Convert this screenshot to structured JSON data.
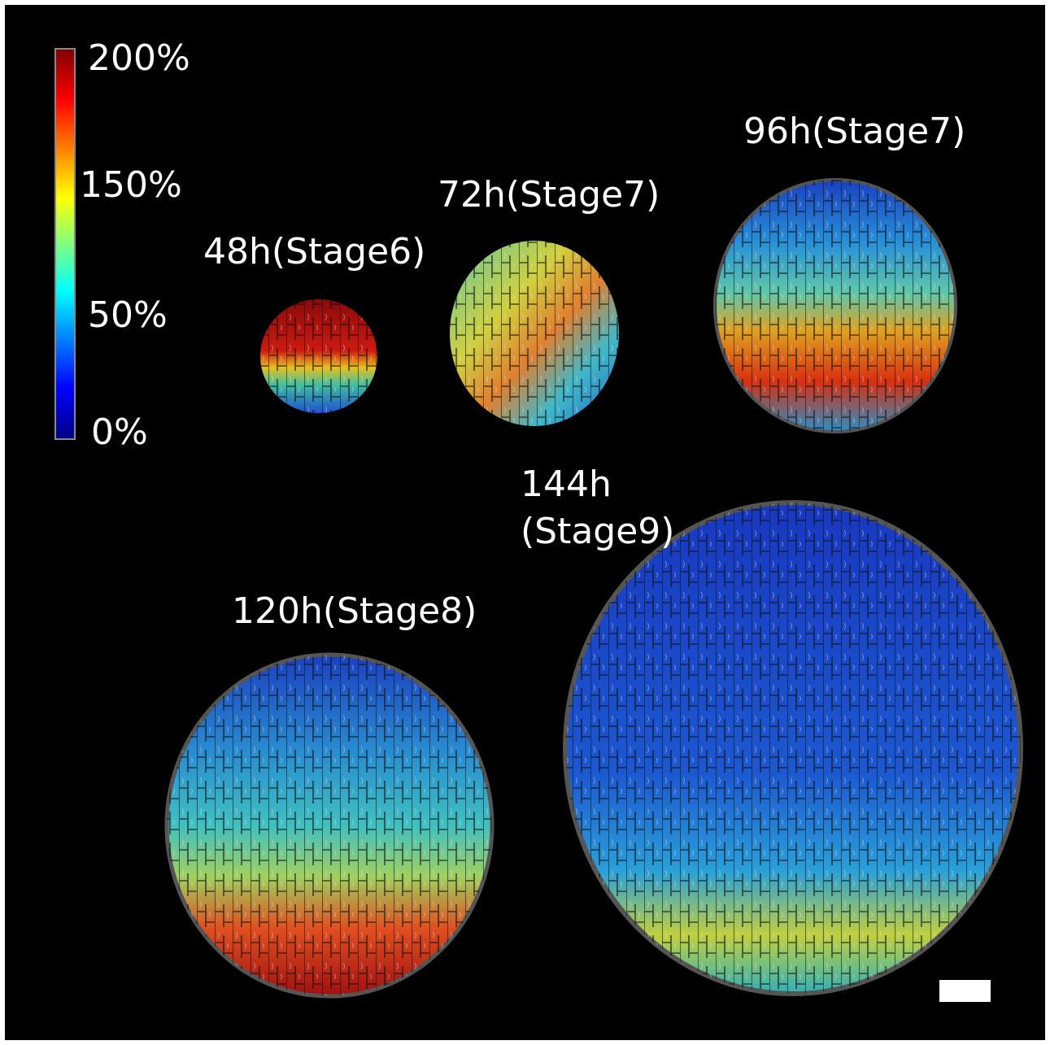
{
  "colorbar": {
    "labels": [
      "200%",
      "150%",
      "50%",
      "0%"
    ]
  },
  "samples": [
    {
      "lines": [
        "48h(Stage6)"
      ]
    },
    {
      "lines": [
        "72h(Stage7)"
      ]
    },
    {
      "lines": [
        "96h(Stage7)"
      ]
    },
    {
      "lines": [
        "120h(Stage8)"
      ]
    },
    {
      "lines": [
        "144h",
        "(Stage9)"
      ]
    }
  ]
}
